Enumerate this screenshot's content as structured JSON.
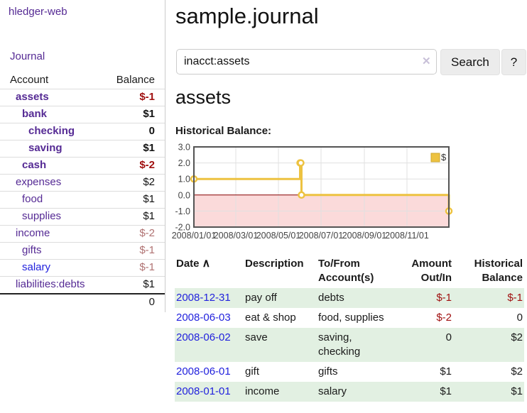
{
  "sidebar": {
    "brand": "hledger-web",
    "nav": {
      "journal_label": "Journal"
    },
    "accounts_table": {
      "headers": [
        "Account",
        "Balance"
      ],
      "rows": [
        {
          "name": "assets",
          "balance": "$-1",
          "depth": 1,
          "bold": true,
          "link_color": "purple"
        },
        {
          "name": "bank",
          "balance": "$1",
          "depth": 2,
          "bold": true,
          "link_color": "purple"
        },
        {
          "name": "checking",
          "balance": "0",
          "depth": 3,
          "bold": true,
          "link_color": "purple"
        },
        {
          "name": "saving",
          "balance": "$1",
          "depth": 3,
          "bold": true,
          "link_color": "purple"
        },
        {
          "name": "cash",
          "balance": "$-2",
          "depth": 2,
          "bold": true,
          "link_color": "purple"
        },
        {
          "name": "expenses",
          "balance": "$2",
          "depth": 1,
          "bold": false,
          "link_color": "purple"
        },
        {
          "name": "food",
          "balance": "$1",
          "depth": 2,
          "bold": false,
          "link_color": "purple"
        },
        {
          "name": "supplies",
          "balance": "$1",
          "depth": 2,
          "bold": false,
          "link_color": "purple"
        },
        {
          "name": "income",
          "balance": "$-2",
          "depth": 1,
          "bold": false,
          "link_color": "purple"
        },
        {
          "name": "gifts",
          "balance": "$-1",
          "depth": 2,
          "bold": false,
          "link_color": "purple"
        },
        {
          "name": "salary",
          "balance": "$-1",
          "depth": 2,
          "bold": false,
          "link_color": "blue"
        },
        {
          "name": "liabilities:debts",
          "balance": "$1",
          "depth": 1,
          "bold": false,
          "link_color": "purple"
        }
      ],
      "total": "0"
    }
  },
  "header": {
    "title": "sample.journal"
  },
  "search": {
    "value": "inacct:assets",
    "clear_icon": "✕",
    "button_label": "Search",
    "help_label": "?"
  },
  "account_page": {
    "heading": "assets",
    "chart_label": "Historical Balance:"
  },
  "chart_data": {
    "type": "line",
    "step": true,
    "title": "Historical Balance",
    "series": [
      {
        "name": "$",
        "color": "#edc240",
        "points": [
          [
            "2008-01-01",
            1
          ],
          [
            "2008-06-01",
            2
          ],
          [
            "2008-06-02",
            2
          ],
          [
            "2008-06-03",
            0
          ],
          [
            "2008-12-31",
            -1
          ]
        ]
      }
    ],
    "ylim": [
      -2,
      3
    ],
    "yticks": [
      {
        "v": 3,
        "label": "3.0"
      },
      {
        "v": 2,
        "label": "2.0"
      },
      {
        "v": 1,
        "label": "1.0"
      },
      {
        "v": 0,
        "label": "0.0"
      },
      {
        "v": -1,
        "label": "-1.0"
      },
      {
        "v": -2,
        "label": "-2.0"
      }
    ],
    "xticks": [
      {
        "date": "2008-01-01",
        "label": "2008/01/01"
      },
      {
        "date": "2008-03-01",
        "label": "2008/03/01"
      },
      {
        "date": "2008-05-01",
        "label": "2008/05/01"
      },
      {
        "date": "2008-07-01",
        "label": "2008/07/01"
      },
      {
        "date": "2008-09-01",
        "label": "2008/09/01"
      },
      {
        "date": "2008-11-01",
        "label": "2008/11/01"
      }
    ],
    "x_start": "2008-01-01",
    "x_span_days": 365,
    "grid": true,
    "legend_position": "top-right",
    "colors": {
      "grid": "#e0e0e0",
      "border": "#545454",
      "zero_line": "#8b0000",
      "negative_region": "#fbdada",
      "legend_border": "#cda72e",
      "axis_text": "#444444"
    }
  },
  "register_table": {
    "headers": {
      "date": "Date",
      "sort_icon": "∧",
      "description": "Description",
      "account": "To/From Account(s)",
      "amount": "Amount Out/In",
      "balance": "Historical Balance"
    },
    "rows": [
      {
        "date": "2008-12-31",
        "description": "pay off",
        "accounts": "debts",
        "amount": "$-1",
        "balance": "$-1"
      },
      {
        "date": "2008-06-03",
        "description": "eat & shop",
        "accounts": "food, supplies",
        "amount": "$-2",
        "balance": "0"
      },
      {
        "date": "2008-06-02",
        "description": "save",
        "accounts": "saving, checking",
        "amount": "0",
        "balance": "$2"
      },
      {
        "date": "2008-06-01",
        "description": "gift",
        "accounts": "gifts",
        "amount": "$1",
        "balance": "$2"
      },
      {
        "date": "2008-01-01",
        "description": "income",
        "accounts": "salary",
        "amount": "$1",
        "balance": "$1"
      }
    ]
  },
  "colors": {
    "link_purple": "#552a94",
    "link_blue": "#2222dd",
    "negative_strong": "#a01010",
    "negative_muted": "#b07272",
    "row_stripe_green": "#e2f0e2",
    "series_gold": "#edc240"
  }
}
